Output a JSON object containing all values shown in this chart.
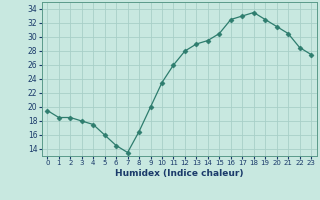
{
  "x": [
    0,
    1,
    2,
    3,
    4,
    5,
    6,
    7,
    8,
    9,
    10,
    11,
    12,
    13,
    14,
    15,
    16,
    17,
    18,
    19,
    20,
    21,
    22,
    23
  ],
  "y": [
    19.5,
    18.5,
    18.5,
    18.0,
    17.5,
    16.0,
    14.5,
    13.5,
    16.5,
    20.0,
    23.5,
    26.0,
    28.0,
    29.0,
    29.5,
    30.5,
    32.5,
    33.0,
    33.5,
    32.5,
    31.5,
    30.5,
    28.5,
    27.5
  ],
  "line_color": "#2e7d6e",
  "marker": "D",
  "marker_size": 2.5,
  "bg_color": "#c8e8e0",
  "grid_color": "#a8cfc8",
  "xlabel": "Humidex (Indice chaleur)",
  "ylim": [
    13,
    35
  ],
  "xlim": [
    -0.5,
    23.5
  ],
  "yticks": [
    14,
    16,
    18,
    20,
    22,
    24,
    26,
    28,
    30,
    32,
    34
  ],
  "xtick_labels": [
    "0",
    "1",
    "2",
    "3",
    "4",
    "5",
    "6",
    "7",
    "8",
    "9",
    "10",
    "11",
    "12",
    "13",
    "14",
    "15",
    "16",
    "17",
    "18",
    "19",
    "20",
    "21",
    "22",
    "23"
  ],
  "xlabel_color": "#1a3a6a",
  "tick_color": "#1a3a6a",
  "spine_color": "#5a9a8a"
}
